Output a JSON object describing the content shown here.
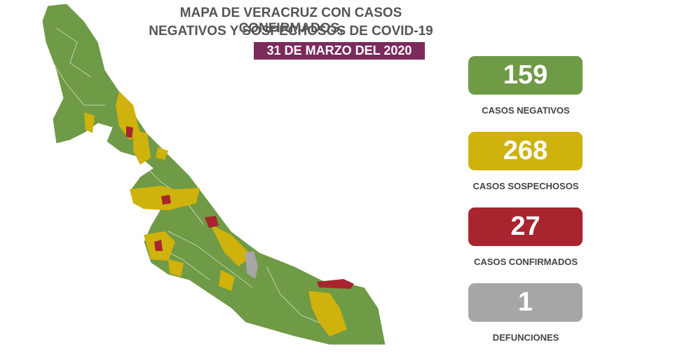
{
  "header": {
    "title_lines": [
      "MAPA DE VERACRUZ CON CASOS CONFIRMADOS,",
      "NEGATIVOS Y SOSPECHOSOS DE COVID-19"
    ],
    "date": "31 DE MARZO DEL 2020"
  },
  "stats": [
    {
      "value": "159",
      "label": "CASOS NEGATIVOS",
      "color": "#6f9a46"
    },
    {
      "value": "268",
      "label": "CASOS SOSPECHOSOS",
      "color": "#cfb20c"
    },
    {
      "value": "27",
      "label": "CASOS CONFIRMADOS",
      "color": "#a8252f"
    },
    {
      "value": "1",
      "label": "DEFUNCIONES",
      "color": "#a6a6a6"
    }
  ]
}
